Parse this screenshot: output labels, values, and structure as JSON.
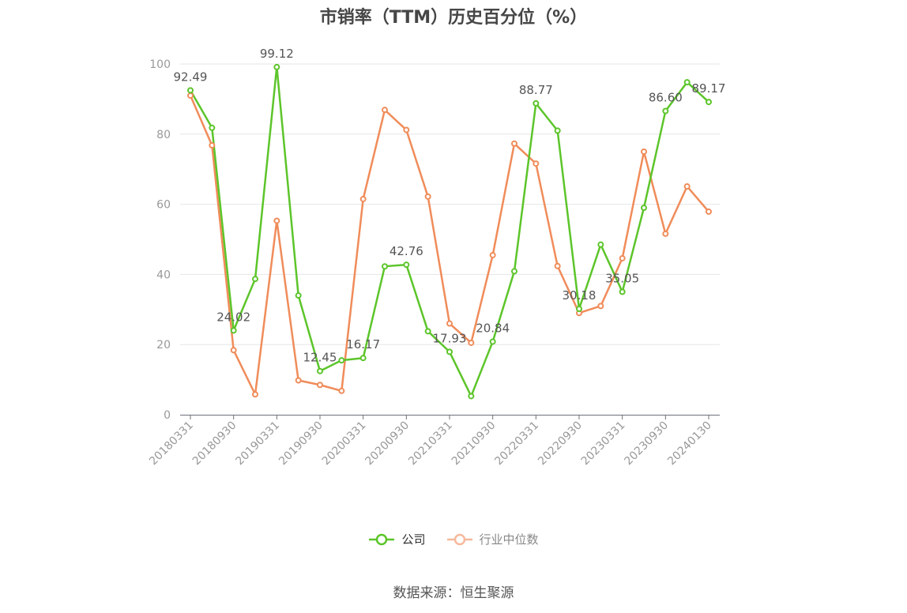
{
  "chart_data": {
    "type": "line",
    "title": "市销率（TTM）历史百分位（%）",
    "xlabel": "",
    "ylabel": "",
    "ylim": [
      0,
      100
    ],
    "yticks": [
      0,
      20,
      40,
      60,
      80,
      100
    ],
    "x": [
      "20180331",
      "20180630",
      "20180930",
      "20181231",
      "20190331",
      "20190630",
      "20190930",
      "20191231",
      "20200331",
      "20200630",
      "20200930",
      "20201231",
      "20210331",
      "20210630",
      "20210930",
      "20211231",
      "20220331",
      "20220630",
      "20220930",
      "20221231",
      "20230331",
      "20230630",
      "20230930",
      "20231231",
      "20240130"
    ],
    "xtick_labels": [
      "20180331",
      "20180930",
      "20190331",
      "20190930",
      "20200331",
      "20200930",
      "20210331",
      "20210930",
      "20220331",
      "20220930",
      "20230331",
      "20230930",
      "20240130"
    ],
    "xtick_indices": [
      0,
      2,
      4,
      6,
      8,
      10,
      12,
      14,
      16,
      18,
      20,
      22,
      24
    ],
    "series": [
      {
        "name": "公司",
        "color": "#5cc52a",
        "values": [
          92.49,
          81.8,
          24.02,
          38.7,
          99.12,
          34.0,
          12.45,
          15.5,
          16.17,
          42.3,
          42.76,
          23.8,
          17.93,
          5.3,
          20.84,
          40.9,
          88.77,
          81.0,
          30.18,
          48.5,
          35.05,
          59.0,
          86.6,
          94.8,
          89.17
        ],
        "labels": {
          "0": "92.49",
          "2": "24.02",
          "4": "99.12",
          "6": "12.45",
          "8": "16.17",
          "10": "42.76",
          "12": "17.93",
          "14": "20.84",
          "16": "88.77",
          "18": "30.18",
          "20": "35.05",
          "22": "86.60",
          "24": "89.17"
        }
      },
      {
        "name": "行业中位数",
        "color": "#f08c5a",
        "values": [
          91.0,
          76.8,
          18.4,
          5.8,
          55.3,
          9.8,
          8.5,
          6.8,
          61.5,
          86.9,
          81.2,
          62.2,
          26.0,
          20.5,
          45.5,
          77.3,
          71.6,
          42.4,
          29.0,
          31.0,
          44.6,
          75.0,
          51.6,
          65.1,
          57.9
        ]
      }
    ],
    "grid": true,
    "legend_position": "bottom-center"
  },
  "legend": {
    "company": "公司",
    "industry": "行业中位数"
  },
  "source": "数据来源：恒生聚源"
}
